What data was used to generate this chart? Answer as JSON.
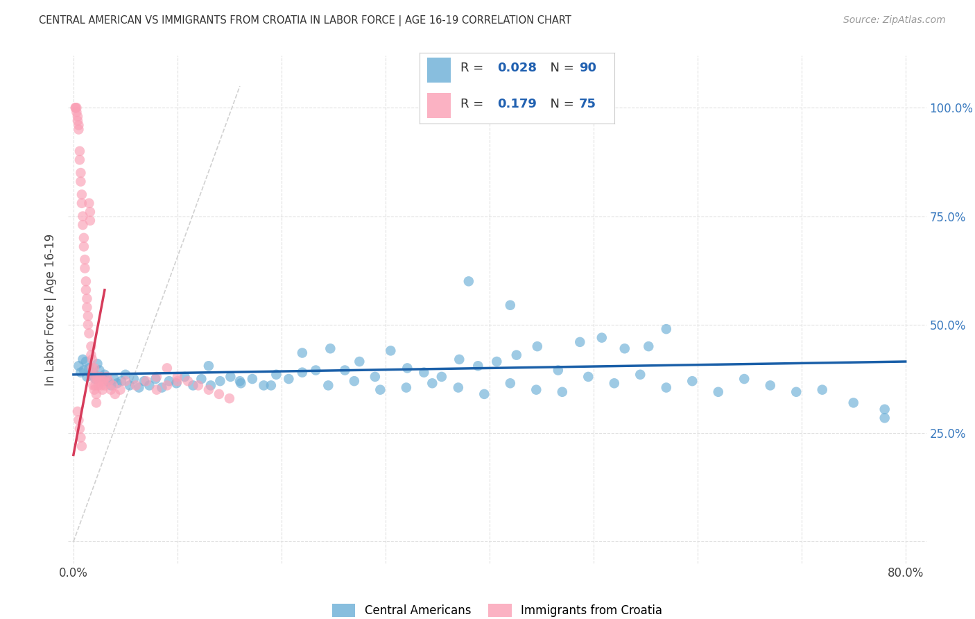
{
  "title": "CENTRAL AMERICAN VS IMMIGRANTS FROM CROATIA IN LABOR FORCE | AGE 16-19 CORRELATION CHART",
  "source": "Source: ZipAtlas.com",
  "ylabel": "In Labor Force | Age 16-19",
  "xlim": [
    -0.005,
    0.82
  ],
  "ylim": [
    -0.05,
    1.12
  ],
  "x_ticks": [
    0.0,
    0.1,
    0.2,
    0.3,
    0.4,
    0.5,
    0.6,
    0.7,
    0.8
  ],
  "x_tick_labels": [
    "0.0%",
    "",
    "",
    "",
    "",
    "",
    "",
    "",
    "80.0%"
  ],
  "y_ticks": [
    0.0,
    0.25,
    0.5,
    0.75,
    1.0
  ],
  "y_tick_labels_right": [
    "",
    "25.0%",
    "50.0%",
    "75.0%",
    "100.0%"
  ],
  "blue_color": "#6baed6",
  "pink_color": "#fa9fb5",
  "trend_blue_color": "#1a5fa8",
  "trend_pink_color": "#d63b5a",
  "diag_color": "#cccccc",
  "grid_color": "#dddddd",
  "legend_R_blue": "0.028",
  "legend_N_blue": "90",
  "legend_R_pink": "0.179",
  "legend_N_pink": "75",
  "legend_label_blue": "Central Americans",
  "legend_label_pink": "Immigrants from Croatia",
  "blue_scatter_x": [
    0.005,
    0.007,
    0.009,
    0.01,
    0.012,
    0.013,
    0.015,
    0.017,
    0.019,
    0.021,
    0.023,
    0.025,
    0.027,
    0.03,
    0.033,
    0.036,
    0.039,
    0.042,
    0.046,
    0.05,
    0.054,
    0.058,
    0.063,
    0.068,
    0.073,
    0.079,
    0.085,
    0.092,
    0.099,
    0.107,
    0.115,
    0.123,
    0.132,
    0.141,
    0.151,
    0.161,
    0.172,
    0.183,
    0.195,
    0.207,
    0.22,
    0.233,
    0.247,
    0.261,
    0.275,
    0.29,
    0.305,
    0.321,
    0.337,
    0.354,
    0.371,
    0.389,
    0.407,
    0.426,
    0.446,
    0.466,
    0.487,
    0.508,
    0.53,
    0.553,
    0.22,
    0.245,
    0.27,
    0.295,
    0.32,
    0.345,
    0.37,
    0.395,
    0.42,
    0.445,
    0.47,
    0.495,
    0.52,
    0.545,
    0.57,
    0.595,
    0.62,
    0.645,
    0.67,
    0.695,
    0.72,
    0.75,
    0.78,
    0.13,
    0.16,
    0.19,
    0.57,
    0.78,
    0.42,
    0.38
  ],
  "blue_scatter_y": [
    0.405,
    0.39,
    0.42,
    0.395,
    0.415,
    0.38,
    0.4,
    0.385,
    0.39,
    0.375,
    0.41,
    0.395,
    0.38,
    0.385,
    0.37,
    0.36,
    0.375,
    0.365,
    0.37,
    0.385,
    0.36,
    0.375,
    0.355,
    0.37,
    0.36,
    0.375,
    0.355,
    0.37,
    0.365,
    0.38,
    0.36,
    0.375,
    0.36,
    0.37,
    0.38,
    0.365,
    0.375,
    0.36,
    0.385,
    0.375,
    0.435,
    0.395,
    0.445,
    0.395,
    0.415,
    0.38,
    0.44,
    0.4,
    0.39,
    0.38,
    0.42,
    0.405,
    0.415,
    0.43,
    0.45,
    0.395,
    0.46,
    0.47,
    0.445,
    0.45,
    0.39,
    0.36,
    0.37,
    0.35,
    0.355,
    0.365,
    0.355,
    0.34,
    0.365,
    0.35,
    0.345,
    0.38,
    0.365,
    0.385,
    0.355,
    0.37,
    0.345,
    0.375,
    0.36,
    0.345,
    0.35,
    0.32,
    0.285,
    0.405,
    0.37,
    0.36,
    0.49,
    0.305,
    0.545,
    0.6
  ],
  "pink_scatter_x": [
    0.002,
    0.002,
    0.003,
    0.003,
    0.004,
    0.004,
    0.005,
    0.005,
    0.006,
    0.006,
    0.007,
    0.007,
    0.008,
    0.008,
    0.009,
    0.009,
    0.01,
    0.01,
    0.011,
    0.011,
    0.012,
    0.012,
    0.013,
    0.013,
    0.014,
    0.014,
    0.015,
    0.015,
    0.016,
    0.016,
    0.017,
    0.017,
    0.018,
    0.018,
    0.019,
    0.019,
    0.02,
    0.02,
    0.021,
    0.021,
    0.022,
    0.022,
    0.023,
    0.024,
    0.025,
    0.026,
    0.027,
    0.028,
    0.029,
    0.03,
    0.032,
    0.034,
    0.036,
    0.038,
    0.04,
    0.045,
    0.05,
    0.06,
    0.07,
    0.08,
    0.09,
    0.1,
    0.11,
    0.12,
    0.13,
    0.14,
    0.15,
    0.1,
    0.09,
    0.08,
    0.004,
    0.005,
    0.006,
    0.007,
    0.008
  ],
  "pink_scatter_y": [
    1.0,
    1.0,
    1.0,
    0.99,
    0.98,
    0.97,
    0.96,
    0.95,
    0.9,
    0.88,
    0.85,
    0.83,
    0.8,
    0.78,
    0.75,
    0.73,
    0.7,
    0.68,
    0.65,
    0.63,
    0.6,
    0.58,
    0.56,
    0.54,
    0.52,
    0.5,
    0.48,
    0.78,
    0.76,
    0.74,
    0.45,
    0.43,
    0.42,
    0.4,
    0.38,
    0.36,
    0.35,
    0.4,
    0.38,
    0.36,
    0.34,
    0.32,
    0.38,
    0.36,
    0.37,
    0.38,
    0.36,
    0.35,
    0.37,
    0.36,
    0.38,
    0.37,
    0.35,
    0.36,
    0.34,
    0.35,
    0.37,
    0.36,
    0.37,
    0.38,
    0.4,
    0.38,
    0.37,
    0.36,
    0.35,
    0.34,
    0.33,
    0.37,
    0.36,
    0.35,
    0.3,
    0.28,
    0.26,
    0.24,
    0.22
  ]
}
